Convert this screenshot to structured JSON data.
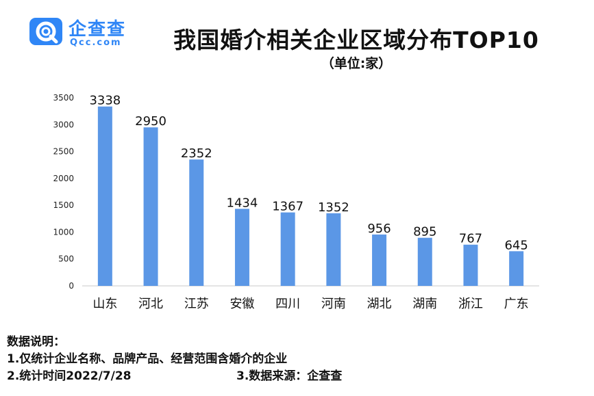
{
  "logo": {
    "text": "企查查",
    "subtext": "Qcc.com",
    "icon": "qcc-q-icon",
    "color": "#2f86f6"
  },
  "title": "我国婚介相关企业区域分布TOP10",
  "unit": "（单位:家）",
  "chart_data": {
    "type": "bar",
    "title": "我国婚介相关企业区域分布TOP10",
    "subtitle": "（单位:家）",
    "categories": [
      "山东",
      "河北",
      "江苏",
      "安徽",
      "四川",
      "河南",
      "湖北",
      "湖南",
      "浙江",
      "广东"
    ],
    "values": [
      3338,
      2950,
      2352,
      1434,
      1367,
      1352,
      956,
      895,
      767,
      645
    ],
    "ylim": [
      0,
      3500
    ],
    "yticks": [
      0,
      500,
      1000,
      1500,
      2000,
      2500,
      3000,
      3500
    ],
    "bar_color": "#5b97e6",
    "grid": false,
    "data_labels": true
  },
  "notes": {
    "heading": "数据说明：",
    "line1": "1.仅统计企业名称、品牌产品、经营范围含婚介的企业",
    "line2": "2.统计时间2022/7/28",
    "line3": "3.数据来源：企查查"
  }
}
